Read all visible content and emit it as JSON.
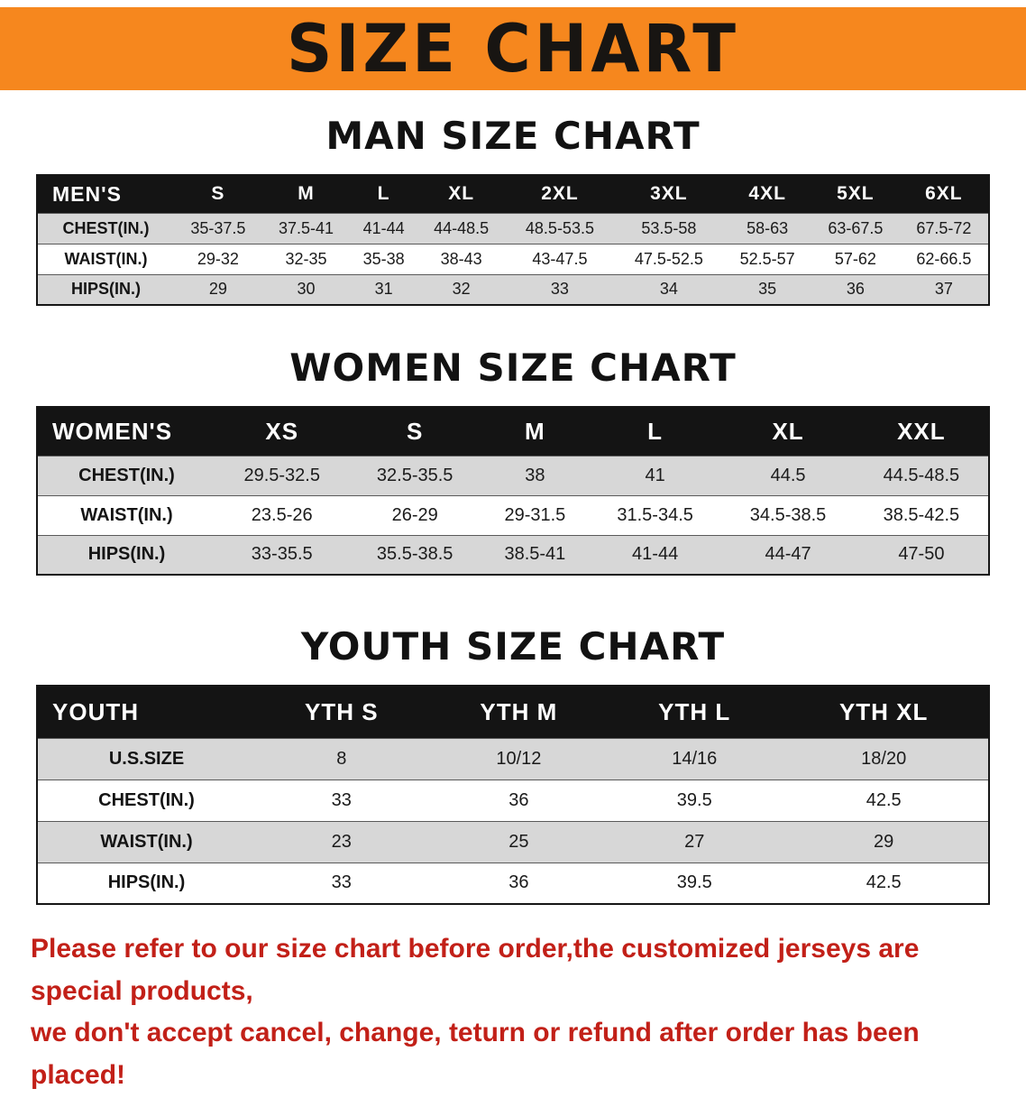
{
  "theme": {
    "banner_bg": "#f6871e",
    "banner_text": "#181512",
    "table_header_bg": "#141414",
    "table_header_text": "#ffffff",
    "row_stripe": "#d7d7d7",
    "row_white": "#ffffff",
    "disclaimer_color": "#c22018",
    "page_bg": "#ffffff"
  },
  "banner": {
    "title": "SIZE CHART"
  },
  "sections": [
    {
      "id": "men",
      "heading": "MAN SIZE CHART",
      "table": {
        "header": [
          "MEN'S",
          "S",
          "M",
          "L",
          "XL",
          "2XL",
          "3XL",
          "4XL",
          "5XL",
          "6XL"
        ],
        "rows": [
          [
            "CHEST(IN.)",
            "35-37.5",
            "37.5-41",
            "41-44",
            "44-48.5",
            "48.5-53.5",
            "53.5-58",
            "58-63",
            "63-67.5",
            "67.5-72"
          ],
          [
            "WAIST(IN.)",
            "29-32",
            "32-35",
            "35-38",
            "38-43",
            "43-47.5",
            "47.5-52.5",
            "52.5-57",
            "57-62",
            "62-66.5"
          ],
          [
            "HIPS(IN.)",
            "29",
            "30",
            "31",
            "32",
            "33",
            "34",
            "35",
            "36",
            "37"
          ]
        ]
      }
    },
    {
      "id": "women",
      "heading": "WOMEN SIZE CHART",
      "table": {
        "header": [
          "WOMEN'S",
          "XS",
          "S",
          "M",
          "L",
          "XL",
          "XXL"
        ],
        "rows": [
          [
            "CHEST(IN.)",
            "29.5-32.5",
            "32.5-35.5",
            "38",
            "41",
            "44.5",
            "44.5-48.5"
          ],
          [
            "WAIST(IN.)",
            "23.5-26",
            "26-29",
            "29-31.5",
            "31.5-34.5",
            "34.5-38.5",
            "38.5-42.5"
          ],
          [
            "HIPS(IN.)",
            "33-35.5",
            "35.5-38.5",
            "38.5-41",
            "41-44",
            "44-47",
            "47-50"
          ]
        ]
      }
    },
    {
      "id": "youth",
      "heading": "YOUTH SIZE CHART",
      "table": {
        "header": [
          "YOUTH",
          "YTH S",
          "YTH M",
          "YTH L",
          "YTH XL"
        ],
        "rows": [
          [
            "U.S.SIZE",
            "8",
            "10/12",
            "14/16",
            "18/20"
          ],
          [
            "CHEST(IN.)",
            "33",
            "36",
            "39.5",
            "42.5"
          ],
          [
            "WAIST(IN.)",
            "23",
            "25",
            "27",
            "29"
          ],
          [
            "HIPS(IN.)",
            "33",
            "36",
            "39.5",
            "42.5"
          ]
        ]
      }
    }
  ],
  "disclaimer": {
    "line1": "Please refer to our size chart before order,the customized jerseys are special products,",
    "line2": "we don't accept cancel, change, teturn or refund after order has been placed!"
  }
}
